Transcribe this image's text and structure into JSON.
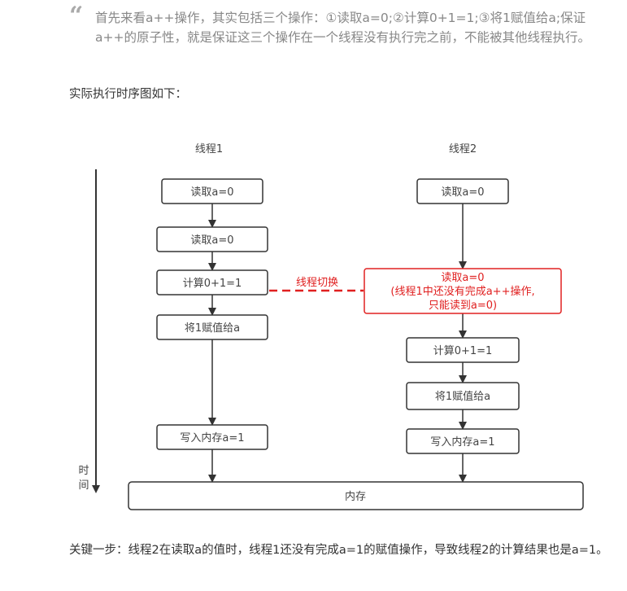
{
  "quote": {
    "icon": "quote-icon",
    "text": "首先来看a++操作，其实包括三个操作：①读取a=0;②计算0+1=1;③将1赋值给a;保证a++的原子性，就是保证这三个操作在一个线程没有执行完之前，不能被其他线程执行。"
  },
  "intro": "实际执行时序图如下：",
  "diagram": {
    "thread1_label": "线程1",
    "thread2_label": "线程2",
    "time_label": [
      "时",
      "间"
    ],
    "thread1_steps": [
      "读取a=0",
      "读取a=0",
      "计算0+1=1",
      "将1赋值给a",
      "写入内存a=1"
    ],
    "thread2_steps": [
      "读取a=0",
      "计算0+1=1",
      "将1赋值给a",
      "写入内存a=1"
    ],
    "switch_label": "线程切换",
    "highlight_box": [
      "读取a=0",
      "(线程1中还没有完成a++操作,",
      "只能读到a=0)"
    ],
    "memory_label": "内存",
    "highlight_color": "#e02020"
  },
  "conclusion": "关键一步：线程2在读取a的值时，线程1还没有完成a=1的赋值操作，导致线程2的计算结果也是a=1。"
}
